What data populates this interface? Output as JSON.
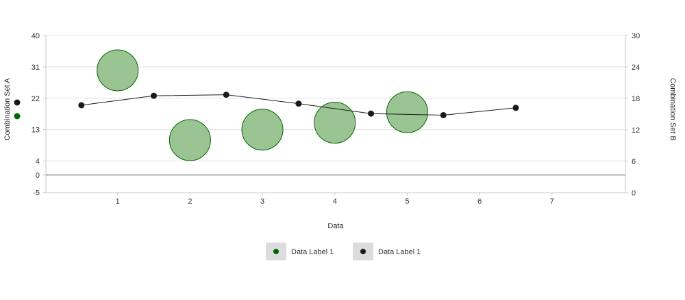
{
  "chart_data": {
    "type": "combination",
    "xlabel": "Data",
    "ylabel_left": "Combination Set A",
    "ylabel_right": "Combination Set B",
    "xlim": [
      0,
      8
    ],
    "x_ticks": [
      1,
      2,
      3,
      4,
      5,
      6,
      7
    ],
    "ylim_left": [
      -5,
      40
    ],
    "y_ticks_left": [
      -5,
      0,
      4,
      13,
      22,
      31,
      40
    ],
    "ylim_right": [
      0,
      30
    ],
    "y_ticks_right": [
      0,
      6,
      12,
      18,
      24,
      30
    ],
    "grid": true,
    "legend_position": "bottom",
    "series": [
      {
        "name": "Data Label 1",
        "type": "bubble",
        "axis": "left",
        "color": "#006400",
        "fill": "#9bc493",
        "points": [
          {
            "x": 1,
            "y": 30
          },
          {
            "x": 2,
            "y": 10
          },
          {
            "x": 3,
            "y": 13
          },
          {
            "x": 4,
            "y": 15
          },
          {
            "x": 5,
            "y": 18
          }
        ]
      },
      {
        "name": "Data Label 1",
        "type": "line",
        "axis": "right",
        "color": "#1a1a1a",
        "points": [
          {
            "x": 0.5,
            "y": 16.7
          },
          {
            "x": 1.5,
            "y": 18.5
          },
          {
            "x": 2.5,
            "y": 18.7
          },
          {
            "x": 3.5,
            "y": 17.0
          },
          {
            "x": 4.5,
            "y": 15.1
          },
          {
            "x": 5.5,
            "y": 14.8
          },
          {
            "x": 6.5,
            "y": 16.2
          }
        ]
      }
    ]
  }
}
